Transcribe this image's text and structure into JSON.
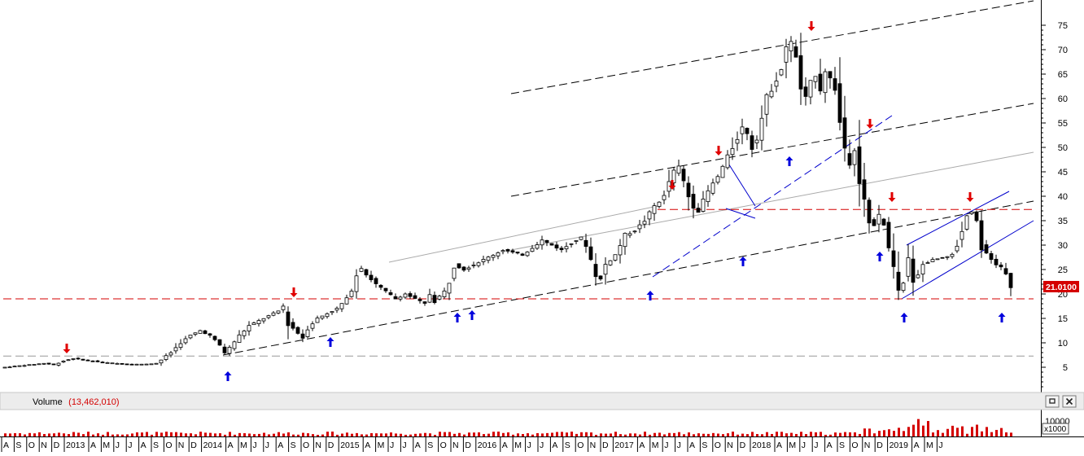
{
  "chart_data": {
    "type": "candlestick",
    "y_axis": {
      "ticks": [
        5,
        10,
        15,
        20,
        25,
        30,
        35,
        40,
        45,
        50,
        55,
        60,
        65,
        70,
        75
      ],
      "range": [
        0,
        78
      ]
    },
    "last_price": "21.0100",
    "volume": {
      "title": "Volume",
      "value": "(13,462,010)",
      "tick": "10000",
      "multiplier": "x1000"
    },
    "time_axis": {
      "labels": [
        "A",
        "S",
        "O",
        "N",
        "D",
        "2013",
        "A",
        "M",
        "J",
        "J",
        "A",
        "S",
        "O",
        "N",
        "D",
        "2014",
        "A",
        "M",
        "J",
        "J",
        "A",
        "S",
        "O",
        "N",
        "D",
        "2015",
        "A",
        "M",
        "J",
        "J",
        "A",
        "S",
        "O",
        "N",
        "D",
        "2016",
        "A",
        "M",
        "J",
        "J",
        "A",
        "S",
        "O",
        "N",
        "D",
        "2017",
        "A",
        "M",
        "J",
        "J",
        "A",
        "S",
        "O",
        "N",
        "D",
        "2018",
        "A",
        "M",
        "J",
        "J",
        "A",
        "S",
        "O",
        "N",
        "D",
        "2019",
        "A",
        "M",
        "J"
      ]
    },
    "price_path": [
      [
        0,
        5.0
      ],
      [
        4,
        5.4
      ],
      [
        8,
        5.8
      ],
      [
        10,
        5.5
      ],
      [
        12,
        6.3
      ],
      [
        14,
        6.8
      ],
      [
        16,
        6.5
      ],
      [
        20,
        6.0
      ],
      [
        24,
        5.7
      ],
      [
        28,
        5.6
      ],
      [
        31,
        5.8
      ],
      [
        32,
        6.5
      ],
      [
        34,
        8.0
      ],
      [
        36,
        10.0
      ],
      [
        38,
        11.5
      ],
      [
        40,
        12.5
      ],
      [
        42,
        11.5
      ],
      [
        44,
        9.5
      ],
      [
        45,
        8.0
      ],
      [
        46,
        9.0
      ],
      [
        48,
        11.5
      ],
      [
        50,
        13.5
      ],
      [
        52,
        14.5
      ],
      [
        54,
        15.5
      ],
      [
        56,
        16.5
      ],
      [
        57,
        17.5
      ],
      [
        58,
        14.0
      ],
      [
        60,
        12.0
      ],
      [
        61,
        11.0
      ],
      [
        62,
        13.0
      ],
      [
        64,
        15.0
      ],
      [
        66,
        16.0
      ],
      [
        68,
        17.0
      ],
      [
        70,
        19.0
      ],
      [
        71,
        21.0
      ],
      [
        72,
        24.0
      ],
      [
        73,
        25.5
      ],
      [
        74,
        24.0
      ],
      [
        76,
        22.0
      ],
      [
        78,
        20.5
      ],
      [
        80,
        19.0
      ],
      [
        82,
        20.0
      ],
      [
        84,
        19.0
      ],
      [
        86,
        18.0
      ],
      [
        87,
        20.0
      ],
      [
        88,
        18.5
      ],
      [
        90,
        20.5
      ],
      [
        91,
        22.5
      ],
      [
        92,
        26.0
      ],
      [
        94,
        25.0
      ],
      [
        96,
        26.0
      ],
      [
        98,
        27.0
      ],
      [
        100,
        28.0
      ],
      [
        102,
        29.0
      ],
      [
        104,
        28.5
      ],
      [
        106,
        28.0
      ],
      [
        108,
        29.5
      ],
      [
        110,
        31.0
      ],
      [
        112,
        30.0
      ],
      [
        114,
        29.0
      ],
      [
        116,
        30.5
      ],
      [
        118,
        31.5
      ],
      [
        119,
        30.0
      ],
      [
        120,
        27.0
      ],
      [
        121,
        24.0
      ],
      [
        122,
        23.0
      ],
      [
        123,
        26.0
      ],
      [
        125,
        28.0
      ],
      [
        127,
        32.0
      ],
      [
        129,
        33.0
      ],
      [
        131,
        35.0
      ],
      [
        133,
        38.0
      ],
      [
        135,
        40.0
      ],
      [
        136,
        43.0
      ],
      [
        137,
        45.0
      ],
      [
        138,
        46.0
      ],
      [
        139,
        43.0
      ],
      [
        140,
        40.0
      ],
      [
        141,
        38.0
      ],
      [
        142,
        37.0
      ],
      [
        143,
        39.0
      ],
      [
        144,
        41.0
      ],
      [
        146,
        44.0
      ],
      [
        148,
        48.0
      ],
      [
        150,
        52.0
      ],
      [
        151,
        54.0
      ],
      [
        152,
        53.0
      ],
      [
        153,
        50.0
      ],
      [
        154,
        52.0
      ],
      [
        155,
        56.0
      ],
      [
        156,
        60.0
      ],
      [
        157,
        62.0
      ],
      [
        158,
        64.0
      ],
      [
        159,
        66.0
      ],
      [
        160,
        70.0
      ],
      [
        161,
        72.0
      ],
      [
        162,
        68.0
      ],
      [
        163,
        62.0
      ],
      [
        164,
        60.0
      ],
      [
        165,
        63.0
      ],
      [
        166,
        65.0
      ],
      [
        167,
        62.0
      ],
      [
        168,
        66.0
      ],
      [
        169,
        64.0
      ],
      [
        170,
        62.0
      ],
      [
        171,
        55.0
      ],
      [
        172,
        50.0
      ],
      [
        173,
        47.0
      ],
      [
        174,
        50.0
      ],
      [
        175,
        43.0
      ],
      [
        176,
        39.0
      ],
      [
        177,
        35.0
      ],
      [
        178,
        34.0
      ],
      [
        179,
        36.0
      ],
      [
        180,
        34.0
      ],
      [
        181,
        30.0
      ],
      [
        182,
        25.0
      ],
      [
        183,
        20.0
      ],
      [
        184,
        22.0
      ],
      [
        185,
        27.0
      ],
      [
        186,
        23.0
      ],
      [
        187,
        24.0
      ],
      [
        188,
        26.0
      ],
      [
        190,
        27.0
      ],
      [
        192,
        27.5
      ],
      [
        194,
        28.0
      ],
      [
        195,
        30.0
      ],
      [
        196,
        33.0
      ],
      [
        197,
        36.0
      ],
      [
        198,
        37.0
      ],
      [
        199,
        35.0
      ],
      [
        200,
        30.0
      ],
      [
        201,
        28.0
      ],
      [
        202,
        27.0
      ],
      [
        203,
        26.0
      ],
      [
        204,
        25.5
      ],
      [
        205,
        24.0
      ],
      [
        206,
        21.0
      ]
    ],
    "total_candles": 206,
    "lines": [
      {
        "kind": "dash",
        "color": "#000000",
        "from": [
          104.0,
          61.0
        ],
        "to": [
          211.0,
          80.0
        ]
      },
      {
        "kind": "dash",
        "color": "#000000",
        "from": [
          104.0,
          40.0
        ],
        "to": [
          211.0,
          59.0
        ]
      },
      {
        "kind": "solid",
        "color": "#aaaaaa",
        "from": [
          104.0,
          29.0
        ],
        "to": [
          211.0,
          49.0
        ]
      },
      {
        "kind": "solid",
        "color": "#aaaaaa",
        "from": [
          79.0,
          26.5
        ],
        "to": [
          134.0,
          38.0
        ]
      },
      {
        "kind": "dash",
        "color": "#000000",
        "from": [
          45.0,
          7.5
        ],
        "to": [
          211.0,
          39.0
        ]
      },
      {
        "kind": "dash",
        "color": "#0000cc",
        "from": [
          133.0,
          23.5
        ],
        "to": [
          182.0,
          56.5
        ]
      },
      {
        "kind": "solid",
        "color": "#0000cc",
        "from": [
          148.0,
          47.5
        ],
        "to": [
          154.0,
          38.0
        ]
      },
      {
        "kind": "solid",
        "color": "#0000cc",
        "from": [
          148.0,
          37.5
        ],
        "to": [
          154.0,
          35.5
        ]
      },
      {
        "kind": "solid",
        "color": "#0000cc",
        "from": [
          184.0,
          19.0
        ],
        "to": [
          211.0,
          35.0
        ]
      },
      {
        "kind": "solid",
        "color": "#0000cc",
        "from": [
          185.0,
          30.0
        ],
        "to": [
          206.0,
          41.0
        ]
      },
      {
        "kind": "dash",
        "color": "#d40000",
        "from": [
          0,
          19.0
        ],
        "to": [
          211.0,
          19.0
        ]
      },
      {
        "kind": "dash",
        "color": "#d40000",
        "from": [
          134.0,
          37.3
        ],
        "to": [
          211.0,
          37.3
        ]
      },
      {
        "kind": "dash",
        "color": "#999999",
        "from": [
          0,
          7.3
        ],
        "to": [
          211.0,
          7.3
        ]
      }
    ],
    "down_arrows": [
      [
        13.0,
        7.5
      ],
      [
        59.5,
        19.0
      ],
      [
        137.0,
        41.0
      ],
      [
        146.5,
        48.0
      ],
      [
        165.5,
        73.5
      ],
      [
        177.5,
        53.5
      ],
      [
        182.0,
        38.5
      ],
      [
        198.0,
        38.5
      ]
    ],
    "up_arrows": [
      [
        46.0,
        4.5
      ],
      [
        67.0,
        11.5
      ],
      [
        93.0,
        16.5
      ],
      [
        96.0,
        17.0
      ],
      [
        132.5,
        21.0
      ],
      [
        151.5,
        28.0
      ],
      [
        161.0,
        48.5
      ],
      [
        179.5,
        29.0
      ],
      [
        184.5,
        16.5
      ],
      [
        204.5,
        16.5
      ]
    ]
  }
}
